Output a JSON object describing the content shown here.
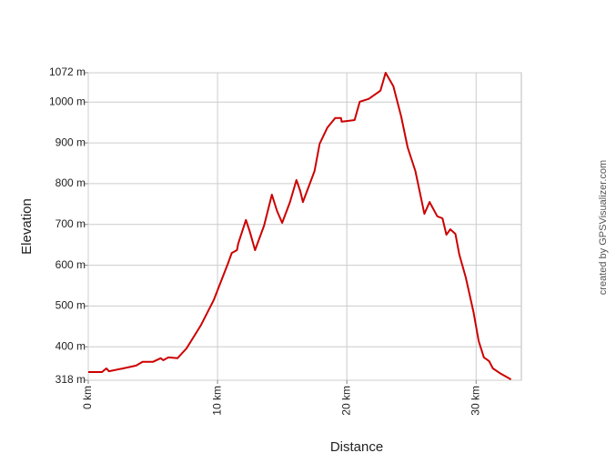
{
  "chart_data": {
    "type": "line",
    "x_label": "Distance",
    "y_label": "Elevation",
    "credit": "created by GPSVisualizer.com",
    "x": [
      0,
      1.06,
      1.4,
      1.6,
      2.7,
      3.7,
      4.2,
      5.0,
      5.6,
      5.8,
      6.2,
      6.9,
      7.6,
      8.7,
      9.7,
      10.8,
      11.1,
      11.5,
      11.6,
      12.2,
      12.5,
      12.9,
      13.6,
      14.2,
      14.6,
      15.0,
      15.6,
      16.1,
      16.4,
      16.6,
      17.5,
      17.9,
      18.5,
      19.1,
      19.55,
      19.6,
      20.6,
      21.0,
      21.7,
      22.6,
      23.0,
      23.6,
      24.2,
      24.7,
      25.3,
      26.0,
      26.4,
      27.0,
      27.4,
      27.7,
      28.0,
      28.4,
      28.7,
      29.2,
      29.8,
      30.2,
      30.6,
      31.0,
      31.3,
      31.9,
      32.7
    ],
    "values": [
      338,
      338,
      347,
      340,
      347,
      354,
      363,
      363,
      372,
      367,
      374,
      372,
      396,
      452,
      514,
      604,
      630,
      637,
      653,
      711,
      682,
      637,
      697,
      773,
      733,
      704,
      755,
      809,
      782,
      755,
      831,
      898,
      938,
      961,
      961,
      952,
      956,
      1001,
      1008,
      1028,
      1072,
      1039,
      965,
      889,
      831,
      726,
      755,
      720,
      715,
      675,
      688,
      677,
      626,
      570,
      485,
      414,
      374,
      365,
      347,
      334,
      320
    ],
    "color": "#cc0000",
    "xlim": [
      0,
      33.5
    ],
    "xticks": [
      {
        "value": 0,
        "label": "0 km"
      },
      {
        "value": 10,
        "label": "10 km"
      },
      {
        "value": 20,
        "label": "20 km"
      },
      {
        "value": 30,
        "label": "30 km"
      }
    ],
    "ylim": [
      318,
      1072
    ],
    "yticks": [
      {
        "value": 318,
        "label": "318 m"
      },
      {
        "value": 400,
        "label": "400 m"
      },
      {
        "value": 500,
        "label": "500 m"
      },
      {
        "value": 600,
        "label": "600 m"
      },
      {
        "value": 700,
        "label": "700 m"
      },
      {
        "value": 800,
        "label": "800 m"
      },
      {
        "value": 900,
        "label": "900 m"
      },
      {
        "value": 1000,
        "label": "1000 m"
      },
      {
        "value": 1072,
        "label": "1072 m"
      }
    ],
    "grid": true
  }
}
